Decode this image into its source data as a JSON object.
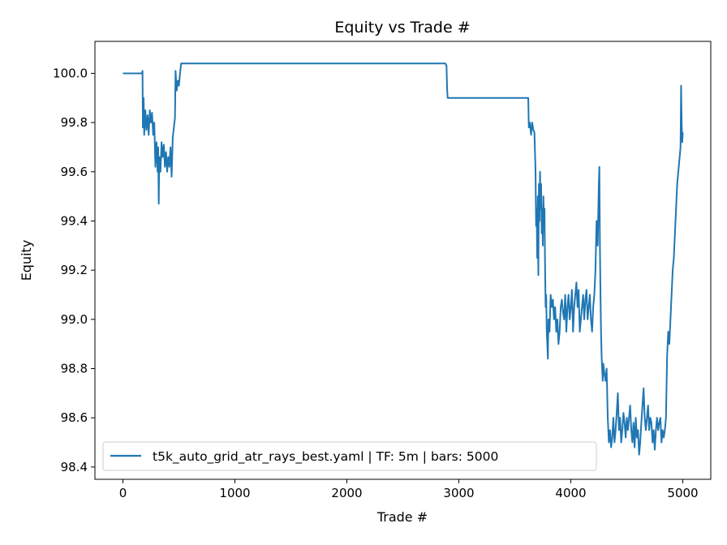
{
  "chart_data": {
    "type": "line",
    "title": "Equity vs Trade #",
    "xlabel": "Trade #",
    "ylabel": "Equity",
    "xlim": [
      -250,
      5250
    ],
    "ylim": [
      98.35,
      100.13
    ],
    "xticks": [
      0,
      1000,
      2000,
      3000,
      4000,
      5000
    ],
    "yticks": [
      98.4,
      98.6,
      98.8,
      99.0,
      99.2,
      99.4,
      99.6,
      99.8,
      100.0
    ],
    "ytick_labels": [
      "98.4",
      "98.6",
      "98.8",
      "99.0",
      "99.2",
      "99.4",
      "99.6",
      "99.8",
      "100.0"
    ],
    "grid": false,
    "legend_position": "lower-left",
    "color": "#1f77b4",
    "series": [
      {
        "name": "t5k_auto_grid_atr_rays_best.yaml | TF: 5m | bars: 5000",
        "points": [
          [
            0,
            100.0
          ],
          [
            170,
            100.0
          ],
          [
            175,
            100.01
          ],
          [
            178,
            99.78
          ],
          [
            185,
            99.9
          ],
          [
            190,
            99.75
          ],
          [
            200,
            99.85
          ],
          [
            210,
            99.77
          ],
          [
            220,
            99.83
          ],
          [
            230,
            99.75
          ],
          [
            240,
            99.85
          ],
          [
            250,
            99.8
          ],
          [
            260,
            99.84
          ],
          [
            270,
            99.75
          ],
          [
            280,
            99.8
          ],
          [
            290,
            99.62
          ],
          [
            300,
            99.72
          ],
          [
            310,
            99.6
          ],
          [
            315,
            99.7
          ],
          [
            320,
            99.47
          ],
          [
            325,
            99.66
          ],
          [
            335,
            99.6
          ],
          [
            345,
            99.72
          ],
          [
            355,
            99.66
          ],
          [
            365,
            99.71
          ],
          [
            375,
            99.62
          ],
          [
            385,
            99.68
          ],
          [
            395,
            99.6
          ],
          [
            405,
            99.66
          ],
          [
            415,
            99.62
          ],
          [
            425,
            99.7
          ],
          [
            435,
            99.58
          ],
          [
            445,
            99.74
          ],
          [
            455,
            99.78
          ],
          [
            465,
            99.82
          ],
          [
            470,
            100.01
          ],
          [
            480,
            99.93
          ],
          [
            490,
            99.97
          ],
          [
            500,
            99.95
          ],
          [
            510,
            100.0
          ],
          [
            520,
            100.04
          ],
          [
            2880,
            100.04
          ],
          [
            2890,
            100.03
          ],
          [
            2895,
            99.94
          ],
          [
            2900,
            99.9
          ],
          [
            3620,
            99.9
          ],
          [
            3625,
            99.78
          ],
          [
            3635,
            99.8
          ],
          [
            3645,
            99.75
          ],
          [
            3655,
            99.8
          ],
          [
            3665,
            99.77
          ],
          [
            3675,
            99.76
          ],
          [
            3685,
            99.6
          ],
          [
            3690,
            99.38
          ],
          [
            3695,
            99.45
          ],
          [
            3700,
            99.25
          ],
          [
            3705,
            99.5
          ],
          [
            3710,
            99.18
          ],
          [
            3715,
            99.55
          ],
          [
            3720,
            99.4
          ],
          [
            3725,
            99.6
          ],
          [
            3730,
            99.45
          ],
          [
            3735,
            99.55
          ],
          [
            3740,
            99.35
          ],
          [
            3745,
            99.45
          ],
          [
            3750,
            99.3
          ],
          [
            3755,
            99.5
          ],
          [
            3760,
            99.4
          ],
          [
            3765,
            99.45
          ],
          [
            3770,
            99.22
          ],
          [
            3775,
            99.05
          ],
          [
            3780,
            99.1
          ],
          [
            3785,
            98.95
          ],
          [
            3790,
            98.9
          ],
          [
            3795,
            98.84
          ],
          [
            3800,
            99.0
          ],
          [
            3810,
            98.95
          ],
          [
            3820,
            99.1
          ],
          [
            3830,
            99.05
          ],
          [
            3840,
            99.08
          ],
          [
            3850,
            99.0
          ],
          [
            3860,
            99.05
          ],
          [
            3870,
            98.95
          ],
          [
            3880,
            99.0
          ],
          [
            3890,
            98.9
          ],
          [
            3900,
            98.95
          ],
          [
            3910,
            99.05
          ],
          [
            3920,
            99.08
          ],
          [
            3930,
            99.03
          ],
          [
            3940,
            99.0
          ],
          [
            3950,
            99.1
          ],
          [
            3960,
            98.95
          ],
          [
            3970,
            99.05
          ],
          [
            3980,
            99.1
          ],
          [
            3990,
            99.0
          ],
          [
            4000,
            99.05
          ],
          [
            4010,
            99.12
          ],
          [
            4020,
            98.95
          ],
          [
            4030,
            99.05
          ],
          [
            4040,
            99.1
          ],
          [
            4050,
            99.15
          ],
          [
            4060,
            99.05
          ],
          [
            4070,
            99.12
          ],
          [
            4080,
            98.95
          ],
          [
            4090,
            99.0
          ],
          [
            4100,
            99.05
          ],
          [
            4110,
            99.1
          ],
          [
            4120,
            99.0
          ],
          [
            4130,
            99.08
          ],
          [
            4140,
            99.12
          ],
          [
            4150,
            99.0
          ],
          [
            4160,
            99.05
          ],
          [
            4170,
            99.1
          ],
          [
            4180,
            99.0
          ],
          [
            4190,
            98.95
          ],
          [
            4200,
            99.05
          ],
          [
            4210,
            99.1
          ],
          [
            4220,
            99.2
          ],
          [
            4230,
            99.4
          ],
          [
            4240,
            99.3
          ],
          [
            4250,
            99.55
          ],
          [
            4255,
            99.62
          ],
          [
            4260,
            99.3
          ],
          [
            4265,
            99.1
          ],
          [
            4270,
            98.95
          ],
          [
            4275,
            98.85
          ],
          [
            4280,
            98.8
          ],
          [
            4285,
            98.75
          ],
          [
            4290,
            98.82
          ],
          [
            4300,
            98.78
          ],
          [
            4310,
            98.75
          ],
          [
            4320,
            98.8
          ],
          [
            4330,
            98.6
          ],
          [
            4340,
            98.5
          ],
          [
            4350,
            98.55
          ],
          [
            4360,
            98.48
          ],
          [
            4370,
            98.52
          ],
          [
            4380,
            98.6
          ],
          [
            4390,
            98.5
          ],
          [
            4400,
            98.55
          ],
          [
            4410,
            98.62
          ],
          [
            4420,
            98.7
          ],
          [
            4430,
            98.55
          ],
          [
            4440,
            98.6
          ],
          [
            4450,
            98.5
          ],
          [
            4460,
            98.55
          ],
          [
            4470,
            98.62
          ],
          [
            4480,
            98.58
          ],
          [
            4490,
            98.52
          ],
          [
            4500,
            98.6
          ],
          [
            4510,
            98.55
          ],
          [
            4520,
            98.6
          ],
          [
            4530,
            98.65
          ],
          [
            4540,
            98.55
          ],
          [
            4550,
            98.5
          ],
          [
            4560,
            98.58
          ],
          [
            4570,
            98.48
          ],
          [
            4580,
            98.6
          ],
          [
            4590,
            98.52
          ],
          [
            4600,
            98.55
          ],
          [
            4610,
            98.45
          ],
          [
            4620,
            98.5
          ],
          [
            4630,
            98.58
          ],
          [
            4640,
            98.65
          ],
          [
            4650,
            98.72
          ],
          [
            4660,
            98.6
          ],
          [
            4670,
            98.55
          ],
          [
            4680,
            98.6
          ],
          [
            4690,
            98.65
          ],
          [
            4700,
            98.55
          ],
          [
            4710,
            98.6
          ],
          [
            4720,
            98.58
          ],
          [
            4730,
            98.5
          ],
          [
            4740,
            98.55
          ],
          [
            4750,
            98.47
          ],
          [
            4760,
            98.55
          ],
          [
            4770,
            98.6
          ],
          [
            4780,
            98.55
          ],
          [
            4790,
            98.58
          ],
          [
            4800,
            98.6
          ],
          [
            4810,
            98.5
          ],
          [
            4820,
            98.55
          ],
          [
            4830,
            98.52
          ],
          [
            4840,
            98.55
          ],
          [
            4850,
            98.6
          ],
          [
            4860,
            98.85
          ],
          [
            4870,
            98.95
          ],
          [
            4880,
            98.9
          ],
          [
            4890,
            99.0
          ],
          [
            4900,
            99.1
          ],
          [
            4910,
            99.2
          ],
          [
            4920,
            99.25
          ],
          [
            4930,
            99.35
          ],
          [
            4940,
            99.45
          ],
          [
            4950,
            99.55
          ],
          [
            4960,
            99.6
          ],
          [
            4970,
            99.65
          ],
          [
            4980,
            99.7
          ],
          [
            4985,
            99.95
          ],
          [
            4990,
            99.8
          ],
          [
            4995,
            99.72
          ],
          [
            5000,
            99.76
          ]
        ]
      }
    ]
  }
}
